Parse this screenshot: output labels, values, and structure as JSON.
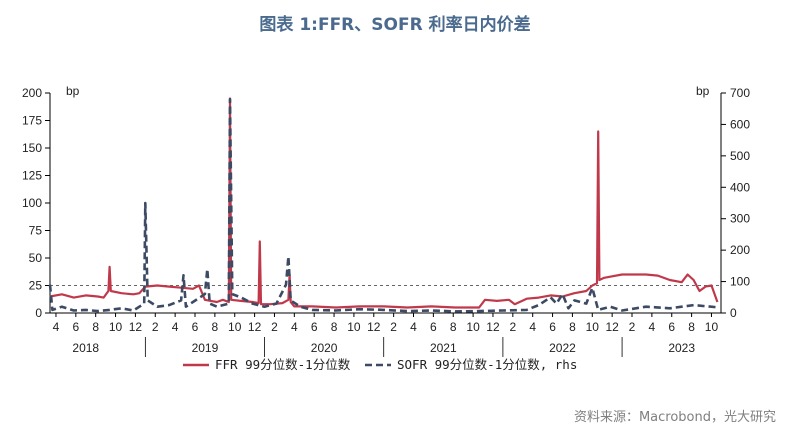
{
  "title": "图表 1:FFR、SOFR 利率日内价差",
  "source": "资料来源：Macrobond，光大研究",
  "chart_data": {
    "type": "line",
    "ylabel_left": "bp",
    "ylabel_right": "bp",
    "ylim_left": [
      0,
      200
    ],
    "ylim_right": [
      0,
      700
    ],
    "yticks_left": [
      0,
      25,
      50,
      75,
      100,
      125,
      150,
      175,
      200
    ],
    "yticks_right": [
      0,
      100,
      200,
      300,
      400,
      500,
      600,
      700
    ],
    "xrange": [
      2018.2,
      2023.83
    ],
    "xtick_months": [
      "4",
      "6",
      "8",
      "10",
      "12",
      "2",
      "4",
      "6",
      "8",
      "10",
      "12",
      "2",
      "4",
      "6",
      "8",
      "10",
      "12",
      "2",
      "4",
      "6",
      "8",
      "10",
      "12",
      "2",
      "4",
      "6",
      "8",
      "10",
      "12",
      "2",
      "4",
      "6",
      "8",
      "10"
    ],
    "year_labels": [
      {
        "label": "2018",
        "x": 2018.5
      },
      {
        "label": "2019",
        "x": 2019.5
      },
      {
        "label": "2020",
        "x": 2020.5
      },
      {
        "label": "2021",
        "x": 2021.5
      },
      {
        "label": "2022",
        "x": 2022.5
      },
      {
        "label": "2023",
        "x": 2023.5
      }
    ],
    "reference_line": {
      "axis": "left",
      "value": 25
    },
    "grid": false,
    "legend_position": "bottom",
    "series": [
      {
        "name": "FFR 99分位数-1分位数",
        "axis": "left",
        "color": "#c0394b",
        "style": "solid",
        "points": [
          [
            2018.2,
            15
          ],
          [
            2018.3,
            17
          ],
          [
            2018.4,
            14
          ],
          [
            2018.5,
            16
          ],
          [
            2018.6,
            15
          ],
          [
            2018.65,
            14
          ],
          [
            2018.69,
            20
          ],
          [
            2018.7,
            42
          ],
          [
            2018.71,
            20
          ],
          [
            2018.8,
            18
          ],
          [
            2018.9,
            17
          ],
          [
            2018.95,
            18
          ],
          [
            2019.0,
            24
          ],
          [
            2019.1,
            25
          ],
          [
            2019.2,
            24
          ],
          [
            2019.3,
            23
          ],
          [
            2019.4,
            22
          ],
          [
            2019.45,
            25
          ],
          [
            2019.5,
            12
          ],
          [
            2019.55,
            11
          ],
          [
            2019.6,
            10
          ],
          [
            2019.65,
            12
          ],
          [
            2019.7,
            10
          ],
          [
            2019.71,
            195
          ],
          [
            2019.72,
            12
          ],
          [
            2019.8,
            11
          ],
          [
            2019.9,
            10
          ],
          [
            2019.95,
            9
          ],
          [
            2019.96,
            65
          ],
          [
            2019.97,
            8
          ],
          [
            2020.05,
            8
          ],
          [
            2020.15,
            9
          ],
          [
            2020.2,
            12
          ],
          [
            2020.21,
            35
          ],
          [
            2020.22,
            10
          ],
          [
            2020.25,
            6
          ],
          [
            2020.4,
            6
          ],
          [
            2020.6,
            5
          ],
          [
            2020.8,
            6
          ],
          [
            2021.0,
            6
          ],
          [
            2021.2,
            5
          ],
          [
            2021.4,
            6
          ],
          [
            2021.6,
            5
          ],
          [
            2021.8,
            5
          ],
          [
            2021.85,
            12
          ],
          [
            2021.95,
            11
          ],
          [
            2022.05,
            12
          ],
          [
            2022.1,
            8
          ],
          [
            2022.2,
            13
          ],
          [
            2022.3,
            14
          ],
          [
            2022.4,
            16
          ],
          [
            2022.5,
            15
          ],
          [
            2022.6,
            18
          ],
          [
            2022.7,
            20
          ],
          [
            2022.75,
            25
          ],
          [
            2022.79,
            27
          ],
          [
            2022.8,
            165
          ],
          [
            2022.81,
            30
          ],
          [
            2022.85,
            32
          ],
          [
            2022.9,
            33
          ],
          [
            2023.0,
            35
          ],
          [
            2023.1,
            35
          ],
          [
            2023.2,
            35
          ],
          [
            2023.3,
            34
          ],
          [
            2023.4,
            30
          ],
          [
            2023.5,
            28
          ],
          [
            2023.55,
            35
          ],
          [
            2023.6,
            30
          ],
          [
            2023.65,
            20
          ],
          [
            2023.7,
            24
          ],
          [
            2023.75,
            25
          ],
          [
            2023.8,
            10
          ]
        ]
      },
      {
        "name": "SOFR 99分位数-1分位数, rhs",
        "axis": "right",
        "color": "#3c4a64",
        "style": "dashed",
        "points": [
          [
            2018.2,
            90
          ],
          [
            2018.22,
            10
          ],
          [
            2018.3,
            20
          ],
          [
            2018.4,
            8
          ],
          [
            2018.5,
            10
          ],
          [
            2018.6,
            6
          ],
          [
            2018.7,
            10
          ],
          [
            2018.8,
            15
          ],
          [
            2018.9,
            8
          ],
          [
            2018.99,
            30
          ],
          [
            2019.0,
            350
          ],
          [
            2019.02,
            40
          ],
          [
            2019.1,
            20
          ],
          [
            2019.2,
            25
          ],
          [
            2019.3,
            40
          ],
          [
            2019.32,
            120
          ],
          [
            2019.34,
            20
          ],
          [
            2019.5,
            60
          ],
          [
            2019.52,
            140
          ],
          [
            2019.54,
            30
          ],
          [
            2019.6,
            20
          ],
          [
            2019.7,
            30
          ],
          [
            2019.71,
            680
          ],
          [
            2019.73,
            60
          ],
          [
            2019.8,
            50
          ],
          [
            2019.9,
            30
          ],
          [
            2020.0,
            20
          ],
          [
            2020.1,
            30
          ],
          [
            2020.18,
            90
          ],
          [
            2020.2,
            180
          ],
          [
            2020.22,
            40
          ],
          [
            2020.3,
            20
          ],
          [
            2020.4,
            10
          ],
          [
            2020.6,
            8
          ],
          [
            2020.8,
            12
          ],
          [
            2021.0,
            10
          ],
          [
            2021.2,
            6
          ],
          [
            2021.4,
            8
          ],
          [
            2021.6,
            5
          ],
          [
            2021.8,
            6
          ],
          [
            2022.0,
            8
          ],
          [
            2022.2,
            10
          ],
          [
            2022.3,
            25
          ],
          [
            2022.4,
            50
          ],
          [
            2022.45,
            30
          ],
          [
            2022.5,
            60
          ],
          [
            2022.55,
            15
          ],
          [
            2022.6,
            40
          ],
          [
            2022.7,
            30
          ],
          [
            2022.75,
            80
          ],
          [
            2022.8,
            10
          ],
          [
            2022.9,
            20
          ],
          [
            2023.0,
            8
          ],
          [
            2023.2,
            20
          ],
          [
            2023.4,
            15
          ],
          [
            2023.6,
            25
          ],
          [
            2023.8,
            18
          ]
        ]
      }
    ]
  }
}
